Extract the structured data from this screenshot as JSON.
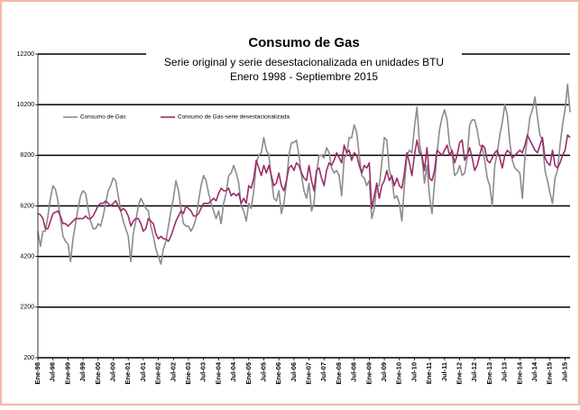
{
  "chart_data": {
    "type": "line",
    "title": "Consumo de Gas",
    "subtitle": [
      "Serie original y serie desestacionalizada en unidades BTU",
      "Enero 1998 - Septiembre 2015"
    ],
    "categories": [
      "Ene-98",
      null,
      null,
      null,
      null,
      null,
      "Jul-98",
      null,
      null,
      null,
      null,
      null,
      "Ene-99",
      null,
      null,
      null,
      null,
      null,
      "Jul-99",
      null,
      null,
      null,
      null,
      null,
      "Ene-00",
      null,
      null,
      null,
      null,
      null,
      "Jul-00",
      null,
      null,
      null,
      null,
      null,
      "Ene-01",
      null,
      null,
      null,
      null,
      null,
      "Jul-01",
      null,
      null,
      null,
      null,
      null,
      "Ene-02",
      null,
      null,
      null,
      null,
      null,
      "Jul-02",
      null,
      null,
      null,
      null,
      null,
      "Ene-03",
      null,
      null,
      null,
      null,
      null,
      "Jul-03",
      null,
      null,
      null,
      null,
      null,
      "Ene-04",
      null,
      null,
      null,
      null,
      null,
      "Jul-04",
      null,
      null,
      null,
      null,
      null,
      "Ene-05",
      null,
      null,
      null,
      null,
      null,
      "Jul-05",
      null,
      null,
      null,
      null,
      null,
      "Ene-06",
      null,
      null,
      null,
      null,
      null,
      "Jul-06",
      null,
      null,
      null,
      null,
      null,
      "Ene-07",
      null,
      null,
      null,
      null,
      null,
      "Jul-07",
      null,
      null,
      null,
      null,
      null,
      "Ene-08",
      null,
      null,
      null,
      null,
      null,
      "Jul-08",
      null,
      null,
      null,
      null,
      null,
      "Ene-09",
      null,
      null,
      null,
      null,
      null,
      "Jul-09",
      null,
      null,
      null,
      null,
      null,
      "Ene-10",
      null,
      null,
      null,
      null,
      null,
      "Jul-10",
      null,
      null,
      null,
      null,
      null,
      "Ene-11",
      null,
      null,
      null,
      null,
      null,
      "Jul-11",
      null,
      null,
      null,
      null,
      null,
      "Ene-12",
      null,
      null,
      null,
      null,
      null,
      "Jul-12",
      null,
      null,
      null,
      null,
      null,
      "Ene-13",
      null,
      null,
      null,
      null,
      null,
      "Jul-13",
      null,
      null,
      null,
      null,
      null,
      "Ene-14",
      null,
      null,
      null,
      null,
      null,
      "Jul-14",
      null,
      null,
      null,
      null,
      null,
      "Ene-15",
      null,
      null,
      null,
      null,
      null,
      "Jul-15",
      null,
      null
    ],
    "series": [
      {
        "name": "Consumo de Gas",
        "color": "#8c8c8c",
        "values": [
          5200,
          4600,
          5200,
          5200,
          5800,
          6500,
          7000,
          6850,
          6400,
          5700,
          5000,
          4800,
          4700,
          4000,
          4900,
          5500,
          6100,
          6600,
          6800,
          6700,
          6100,
          5600,
          5300,
          5300,
          5500,
          5400,
          5800,
          6300,
          6800,
          7000,
          7300,
          7200,
          6600,
          6000,
          5600,
          5300,
          5000,
          4000,
          5100,
          5600,
          6200,
          6500,
          6300,
          6100,
          6000,
          5400,
          5000,
          4500,
          4200,
          3900,
          4500,
          4800,
          5400,
          6000,
          6500,
          7200,
          6800,
          6100,
          5500,
          5400,
          5400,
          5200,
          5400,
          5700,
          6400,
          7000,
          7400,
          7200,
          6700,
          6300,
          6000,
          5700,
          6000,
          5500,
          6300,
          6700,
          7400,
          7500,
          7800,
          7500,
          7100,
          6200,
          6000,
          5600,
          6300,
          6100,
          6800,
          7900,
          8200,
          8300,
          8900,
          8400,
          8200,
          7300,
          6500,
          6400,
          6800,
          5900,
          6300,
          7100,
          8200,
          8700,
          8700,
          8800,
          8200,
          7400,
          6800,
          6500,
          7100,
          6000,
          6300,
          7500,
          8200,
          8200,
          8100,
          8500,
          8300,
          7700,
          7500,
          7600,
          7400,
          6600,
          8100,
          8200,
          8900,
          8900,
          9400,
          9100,
          8200,
          7400,
          7300,
          7000,
          7200,
          5700,
          6100,
          7000,
          7000,
          7900,
          8900,
          8800,
          7600,
          7300,
          6500,
          6600,
          6300,
          5600,
          7000,
          8200,
          8400,
          8300,
          9300,
          10100,
          8700,
          8100,
          7100,
          7800,
          6600,
          5900,
          7100,
          8300,
          9200,
          9700,
          10000,
          9600,
          8600,
          8300,
          7400,
          7500,
          7800,
          7400,
          7500,
          8100,
          9400,
          9600,
          9600,
          9200,
          8600,
          8500,
          8000,
          7300,
          7000,
          6200,
          7800,
          8300,
          9000,
          9500,
          10200,
          9800,
          8700,
          8000,
          7700,
          7600,
          7500,
          6500,
          8100,
          8900,
          9700,
          10000,
          10500,
          9700,
          9000,
          8800,
          7600,
          7200,
          6700,
          6300,
          7300,
          7600,
          8600,
          9400,
          10000,
          11000,
          9900
        ]
      },
      {
        "name": "Consumo de Gas-serie desestacionalizada",
        "color": "#9b2d6b",
        "values": [
          5900,
          5850,
          5700,
          5300,
          5300,
          5600,
          5900,
          5950,
          6000,
          5800,
          5500,
          5500,
          5400,
          5500,
          5600,
          5700,
          5700,
          5700,
          5700,
          5800,
          5700,
          5700,
          5800,
          6000,
          6200,
          6300,
          6300,
          6400,
          6300,
          6200,
          6300,
          6400,
          6200,
          6000,
          6100,
          6000,
          5800,
          5400,
          5600,
          5700,
          5700,
          5500,
          5200,
          5300,
          5700,
          5600,
          5500,
          5100,
          4900,
          5000,
          4900,
          4900,
          4800,
          5000,
          5300,
          5600,
          5800,
          6000,
          5900,
          6200,
          6100,
          6000,
          5800,
          5800,
          5900,
          6100,
          6300,
          6300,
          6300,
          6400,
          6500,
          6400,
          6700,
          6900,
          6800,
          6800,
          6900,
          6600,
          6700,
          6600,
          6700,
          6300,
          6500,
          6300,
          7000,
          6900,
          7300,
          8000,
          7700,
          7400,
          7800,
          7500,
          7800,
          7400,
          7000,
          7100,
          7500,
          7000,
          6800,
          7200,
          7700,
          7800,
          7600,
          7900,
          7800,
          7500,
          7300,
          7200,
          7800,
          7200,
          6800,
          7600,
          7700,
          7300,
          7000,
          7600,
          7900,
          7800,
          8000,
          8300,
          8100,
          7900,
          8600,
          8300,
          8400,
          8000,
          8300,
          8200,
          7800,
          7500,
          7800,
          7700,
          7900,
          6100,
          6600,
          7100,
          6500,
          7000,
          7200,
          7600,
          7200,
          7400,
          7000,
          7300,
          7000,
          6900,
          7500,
          8300,
          7900,
          7400,
          8200,
          8800,
          8300,
          8200,
          7600,
          8500,
          7300,
          7200,
          7600,
          8400,
          8300,
          8200,
          8400,
          8600,
          8200,
          8400,
          7900,
          8200,
          8700,
          8800,
          8000,
          8200,
          8500,
          8100,
          7600,
          7800,
          8200,
          8600,
          8500,
          8000,
          7900,
          8100,
          8300,
          8400,
          8100,
          7700,
          8200,
          8400,
          8300,
          8100,
          8200,
          8300,
          8400,
          8300,
          8600,
          9000,
          8800,
          8600,
          8400,
          8300,
          8600,
          8900,
          8100,
          7900,
          7800,
          8400,
          7800,
          7700,
          7900,
          8200,
          8400,
          9000,
          8900
        ]
      }
    ],
    "ylim": [
      200,
      12200
    ],
    "yticks": [
      200,
      2200,
      4200,
      6200,
      8200,
      10200,
      12200
    ],
    "grid": true
  }
}
